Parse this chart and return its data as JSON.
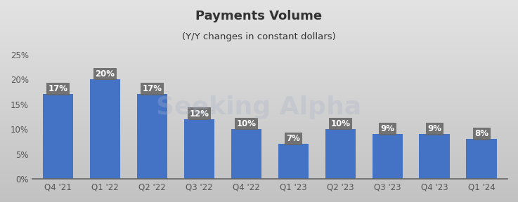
{
  "title": "Payments Volume",
  "subtitle": "(Y/Y changes in constant dollars)",
  "categories": [
    "Q4 '21",
    "Q1 '22",
    "Q2 '22",
    "Q3 '22",
    "Q4 '22",
    "Q1 '23",
    "Q2 '23",
    "Q3 '23",
    "Q4 '23",
    "Q1 '24"
  ],
  "values": [
    17,
    20,
    17,
    12,
    10,
    7,
    10,
    9,
    9,
    8
  ],
  "bar_color": "#4472C4",
  "label_box_color": "#686868",
  "label_text_color": "#ffffff",
  "background_color_top": "#e0e0e0",
  "background_color_bottom": "#c8c8c8",
  "ylim": [
    0,
    25
  ],
  "yticks": [
    0,
    5,
    10,
    15,
    20,
    25
  ],
  "ytick_labels": [
    "0%",
    "5%",
    "10%",
    "15%",
    "20%",
    "25%"
  ],
  "title_fontsize": 13,
  "subtitle_fontsize": 9.5,
  "label_fontsize": 8.5,
  "tick_fontsize": 8.5,
  "title_color": "#333333",
  "tick_color": "#555555"
}
